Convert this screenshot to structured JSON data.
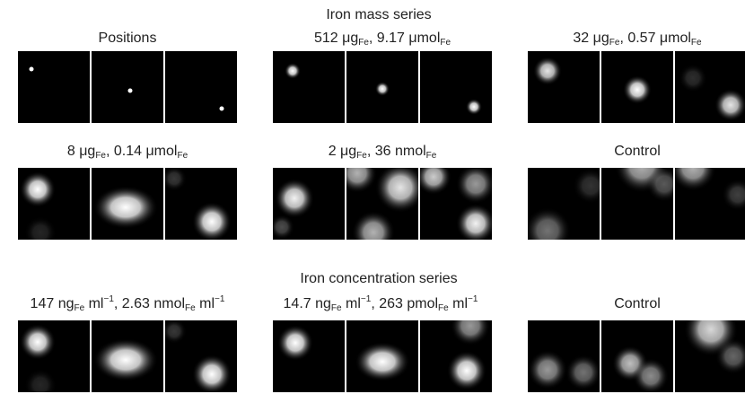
{
  "mass_series": {
    "title": "Iron mass series"
  },
  "concentration_series": {
    "title": "Iron concentration series"
  },
  "panels": [
    {
      "id": "positions",
      "label_parts": [
        {
          "t": "Positions"
        }
      ],
      "style": "dot"
    },
    {
      "id": "mass-512",
      "label_parts": [
        {
          "t": "512 μg"
        },
        {
          "sub": "Fe"
        },
        {
          "t": ", 9.17 μmol"
        },
        {
          "sub": "Fe"
        }
      ],
      "style": "small-blob"
    },
    {
      "id": "mass-32",
      "label_parts": [
        {
          "t": "32 μg"
        },
        {
          "sub": "Fe"
        },
        {
          "t": ", 0.57 μmol"
        },
        {
          "sub": "Fe"
        }
      ],
      "style": "medium-blob"
    },
    {
      "id": "mass-8",
      "label_parts": [
        {
          "t": "8 μg"
        },
        {
          "sub": "Fe"
        },
        {
          "t": ", 0.14 μmol"
        },
        {
          "sub": "Fe"
        }
      ],
      "style": "large-blob"
    },
    {
      "id": "mass-2",
      "label_parts": [
        {
          "t": "2 μg"
        },
        {
          "sub": "Fe"
        },
        {
          "t": ", 36 nmol"
        },
        {
          "sub": "Fe"
        }
      ],
      "style": "noisy"
    },
    {
      "id": "mass-control",
      "label_parts": [
        {
          "t": "Control"
        }
      ],
      "style": "control"
    },
    {
      "id": "conc-147",
      "label_parts": [
        {
          "t": "147 ng"
        },
        {
          "sub": "Fe"
        },
        {
          "t": " ml"
        },
        {
          "sup": "−1"
        },
        {
          "t": ", 2.63 nmol"
        },
        {
          "sub": "Fe"
        },
        {
          "t": " ml"
        },
        {
          "sup": "−1"
        }
      ],
      "style": "large-blob"
    },
    {
      "id": "conc-14-7",
      "label_parts": [
        {
          "t": "14.7 ng"
        },
        {
          "sub": "Fe"
        },
        {
          "t": " ml"
        },
        {
          "sup": "−1"
        },
        {
          "t": ", 263 pmol"
        },
        {
          "sub": "Fe"
        },
        {
          "t": " ml"
        },
        {
          "sup": "−1"
        }
      ],
      "style": "large-blob-alt"
    },
    {
      "id": "conc-control",
      "label_parts": [
        {
          "t": "Control"
        }
      ],
      "style": "control-alt"
    }
  ]
}
